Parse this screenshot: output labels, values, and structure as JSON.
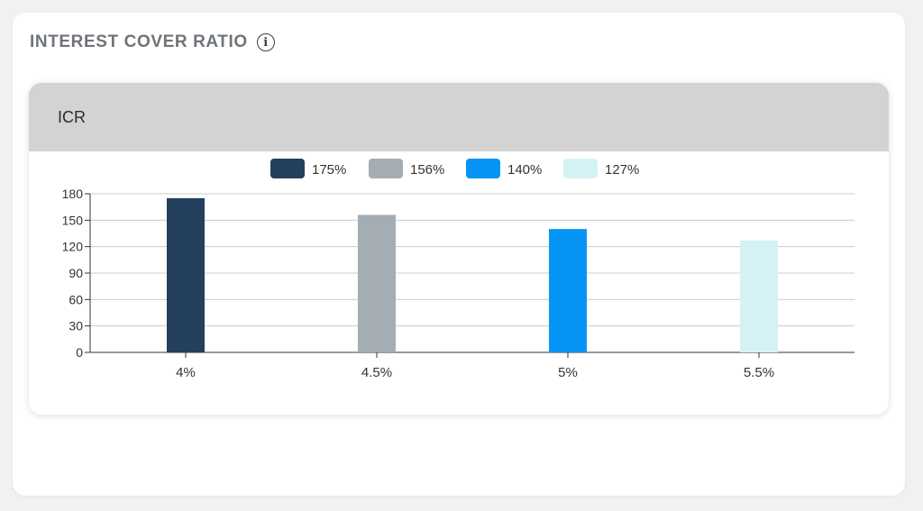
{
  "section": {
    "title": "INTEREST COVER RATIO",
    "info_icon": "info-circle-icon"
  },
  "chart_card": {
    "title": "ICR"
  },
  "colors": {
    "series": [
      "#243f5e",
      "#a4adb4",
      "#0795f5",
      "#d4f2f4"
    ],
    "axis": "#333333",
    "grid": "#cccccc",
    "header_bg": "#d3d3d3"
  },
  "chart_data": {
    "type": "bar",
    "categories": [
      "4%",
      "4.5%",
      "5%",
      "5.5%"
    ],
    "series": [
      {
        "name": "175%",
        "values": [
          175,
          null,
          null,
          null
        ]
      },
      {
        "name": "156%",
        "values": [
          null,
          156,
          null,
          null
        ]
      },
      {
        "name": "140%",
        "values": [
          null,
          null,
          140,
          null
        ]
      },
      {
        "name": "127%",
        "values": [
          null,
          null,
          null,
          127
        ]
      }
    ],
    "yticks": [
      0,
      30,
      60,
      90,
      120,
      150,
      180
    ],
    "ylim": [
      0,
      180
    ],
    "grid": true,
    "legend_position": "top-center",
    "title": "",
    "xlabel": "",
    "ylabel": ""
  }
}
